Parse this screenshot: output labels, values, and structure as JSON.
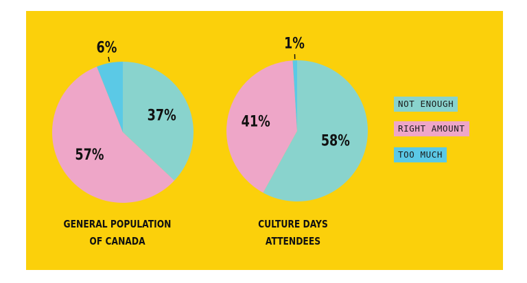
{
  "colors": {
    "panel": "#fbd00b",
    "not_enough": "#89d3cd",
    "right_amount": "#eea6c8",
    "too_much": "#5bc9e6",
    "text": "#111111"
  },
  "legend": [
    {
      "label": "NOT ENOUGH",
      "color": "#89d3cd"
    },
    {
      "label": "RIGHT AMOUNT",
      "color": "#eea6c8"
    },
    {
      "label": "TOO MUCH",
      "color": "#5bc9e6"
    }
  ],
  "chart_data": [
    {
      "type": "pie",
      "title_lines": [
        "GENERAL POPULATION",
        "OF CANADA"
      ],
      "categories": [
        "NOT ENOUGH",
        "RIGHT AMOUNT",
        "TOO MUCH"
      ],
      "values": [
        37,
        57,
        6
      ],
      "labels": [
        "37%",
        "57%",
        "6%"
      ]
    },
    {
      "type": "pie",
      "title_lines": [
        "CULTURE DAYS",
        "ATTENDEES"
      ],
      "categories": [
        "NOT ENOUGH",
        "RIGHT AMOUNT",
        "TOO MUCH"
      ],
      "values": [
        58,
        41,
        1
      ],
      "labels": [
        "58%",
        "41%",
        "1%"
      ]
    }
  ]
}
